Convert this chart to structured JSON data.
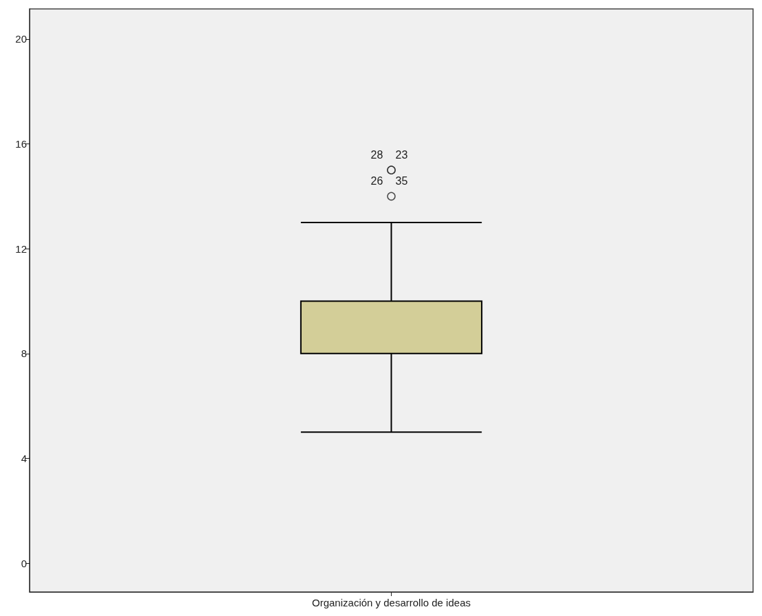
{
  "chart_data": {
    "type": "box",
    "categories": [
      "Organización y desarrollo de ideas"
    ],
    "boxes": [
      {
        "low": 5,
        "q1": 8,
        "median": 10,
        "q3": 10,
        "high": 13,
        "outliers": [
          15,
          15,
          14
        ]
      }
    ],
    "color": "#d3ce98",
    "ylim": [
      -1.1,
      21.15
    ],
    "yticks": [
      0,
      4,
      8,
      12,
      16,
      20
    ],
    "grid": false,
    "annotations": [
      "28",
      "23",
      "26",
      "35"
    ]
  }
}
